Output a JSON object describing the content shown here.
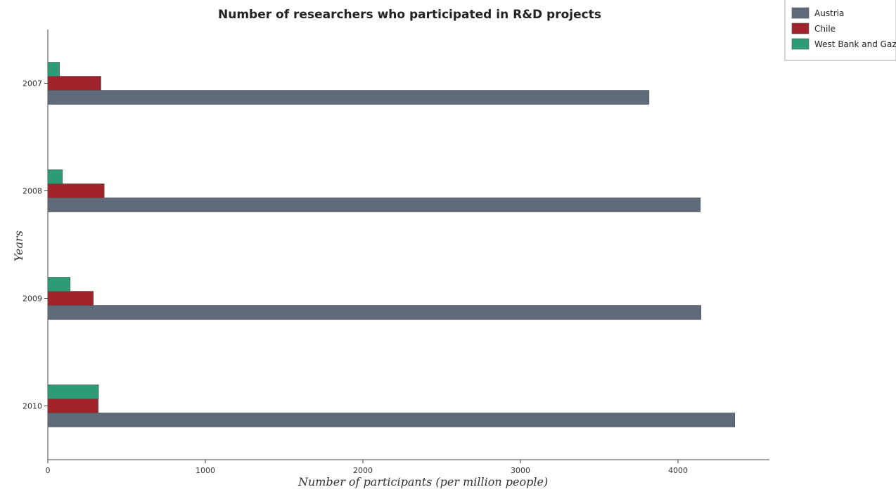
{
  "chart_data": {
    "type": "bar",
    "orientation": "horizontal",
    "title": "Number of researchers who participated in R&D projects",
    "xlabel": "Number of participants (per million people)",
    "ylabel": "Years",
    "categories": [
      "2007",
      "2008",
      "2009",
      "2010"
    ],
    "xlim": [
      0,
      4580
    ],
    "xticks": [
      0,
      1000,
      2000,
      3000,
      4000
    ],
    "legend_position": "top-right",
    "grid": false,
    "series": [
      {
        "name": "Austria",
        "color": "#5f6b7a",
        "values": [
          3816,
          4142,
          4146,
          4360
        ]
      },
      {
        "name": "Chile",
        "color": "#a0232b",
        "values": [
          337,
          358,
          289,
          320
        ]
      },
      {
        "name": "West Bank and Gaza",
        "color": "#2e9b77",
        "values": [
          74,
          93,
          142,
          322
        ]
      }
    ]
  }
}
